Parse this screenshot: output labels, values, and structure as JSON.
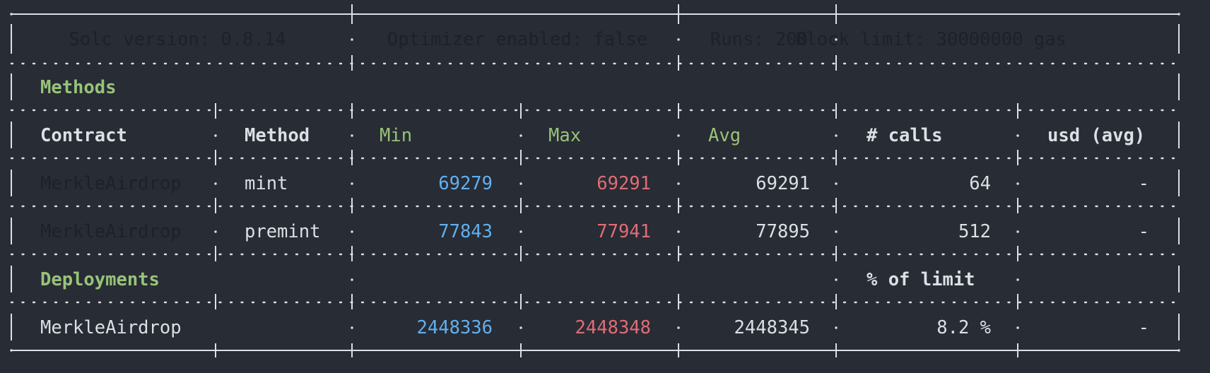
{
  "colors": {
    "background": "#282c34",
    "border": "#dcdfe4",
    "text": "#dcdfe4",
    "label_green": "#98c379",
    "min_blue": "#61afef",
    "max_red": "#e06c75",
    "dark_text": "#1e2127"
  },
  "config": {
    "solc": "Solc version: 0.8.14",
    "optimizer": "Optimizer enabled: false",
    "runs": "Runs: 200",
    "block_limit": "Block limit: 30000000 gas"
  },
  "methods_section": {
    "title": "Methods",
    "headers": {
      "contract": "Contract",
      "method": "Method",
      "min": "Min",
      "max": "Max",
      "avg": "Avg",
      "calls": "# calls",
      "usd": "usd (avg)"
    },
    "rows": [
      {
        "contract": "MerkleAirdrop",
        "method": "mint",
        "min": "69279",
        "max": "69291",
        "avg": "69291",
        "calls": "64",
        "usd": "-"
      },
      {
        "contract": "MerkleAirdrop",
        "method": "premint",
        "min": "77843",
        "max": "77941",
        "avg": "77895",
        "calls": "512",
        "usd": "-"
      }
    ]
  },
  "deployments_section": {
    "title": "Deployments",
    "limit_header": "% of limit",
    "rows": [
      {
        "contract": "MerkleAirdrop",
        "min": "2448336",
        "max": "2448348",
        "avg": "2448345",
        "limit": "8.2 %",
        "usd": "-"
      }
    ]
  }
}
